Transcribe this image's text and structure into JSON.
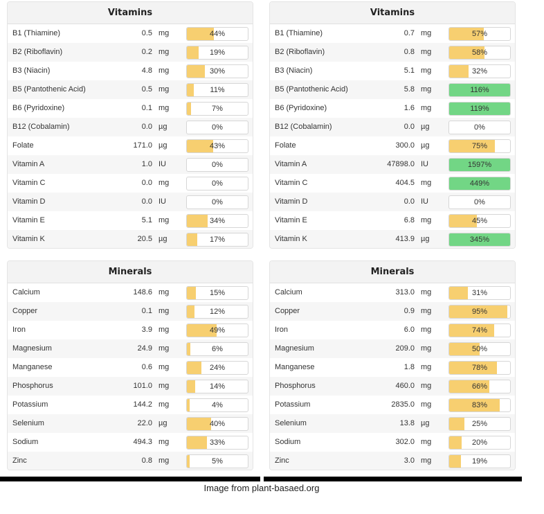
{
  "colors": {
    "yellow": "#f7cf70",
    "green": "#72d685"
  },
  "panels": [
    {
      "title": "Vitamins",
      "rows": [
        {
          "name": "B1 (Thiamine)",
          "amount": "0.5",
          "unit": "mg",
          "pct": "44%",
          "fill": 44,
          "color": "#f7cf70"
        },
        {
          "name": "B2 (Riboflavin)",
          "amount": "0.2",
          "unit": "mg",
          "pct": "19%",
          "fill": 19,
          "color": "#f7cf70"
        },
        {
          "name": "B3 (Niacin)",
          "amount": "4.8",
          "unit": "mg",
          "pct": "30%",
          "fill": 30,
          "color": "#f7cf70"
        },
        {
          "name": "B5 (Pantothenic Acid)",
          "amount": "0.5",
          "unit": "mg",
          "pct": "11%",
          "fill": 11,
          "color": "#f7cf70"
        },
        {
          "name": "B6 (Pyridoxine)",
          "amount": "0.1",
          "unit": "mg",
          "pct": "7%",
          "fill": 7,
          "color": "#f7cf70"
        },
        {
          "name": "B12 (Cobalamin)",
          "amount": "0.0",
          "unit": "µg",
          "pct": "0%",
          "fill": 0,
          "color": "#f7cf70"
        },
        {
          "name": "Folate",
          "amount": "171.0",
          "unit": "µg",
          "pct": "43%",
          "fill": 43,
          "color": "#f7cf70"
        },
        {
          "name": "Vitamin A",
          "amount": "1.0",
          "unit": "IU",
          "pct": "0%",
          "fill": 0,
          "color": "#f7cf70"
        },
        {
          "name": "Vitamin C",
          "amount": "0.0",
          "unit": "mg",
          "pct": "0%",
          "fill": 0,
          "color": "#f7cf70"
        },
        {
          "name": "Vitamin D",
          "amount": "0.0",
          "unit": "IU",
          "pct": "0%",
          "fill": 0,
          "color": "#f7cf70"
        },
        {
          "name": "Vitamin E",
          "amount": "5.1",
          "unit": "mg",
          "pct": "34%",
          "fill": 34,
          "color": "#f7cf70"
        },
        {
          "name": "Vitamin K",
          "amount": "20.5",
          "unit": "µg",
          "pct": "17%",
          "fill": 17,
          "color": "#f7cf70"
        }
      ]
    },
    {
      "title": "Vitamins",
      "rows": [
        {
          "name": "B1 (Thiamine)",
          "amount": "0.7",
          "unit": "mg",
          "pct": "57%",
          "fill": 57,
          "color": "#f7cf70"
        },
        {
          "name": "B2 (Riboflavin)",
          "amount": "0.8",
          "unit": "mg",
          "pct": "58%",
          "fill": 58,
          "color": "#f7cf70"
        },
        {
          "name": "B3 (Niacin)",
          "amount": "5.1",
          "unit": "mg",
          "pct": "32%",
          "fill": 32,
          "color": "#f7cf70"
        },
        {
          "name": "B5 (Pantothenic Acid)",
          "amount": "5.8",
          "unit": "mg",
          "pct": "116%",
          "fill": 100,
          "color": "#72d685"
        },
        {
          "name": "B6 (Pyridoxine)",
          "amount": "1.6",
          "unit": "mg",
          "pct": "119%",
          "fill": 100,
          "color": "#72d685"
        },
        {
          "name": "B12 (Cobalamin)",
          "amount": "0.0",
          "unit": "µg",
          "pct": "0%",
          "fill": 0,
          "color": "#f7cf70"
        },
        {
          "name": "Folate",
          "amount": "300.0",
          "unit": "µg",
          "pct": "75%",
          "fill": 75,
          "color": "#f7cf70"
        },
        {
          "name": "Vitamin A",
          "amount": "47898.0",
          "unit": "IU",
          "pct": "1597%",
          "fill": 100,
          "color": "#72d685"
        },
        {
          "name": "Vitamin C",
          "amount": "404.5",
          "unit": "mg",
          "pct": "449%",
          "fill": 100,
          "color": "#72d685"
        },
        {
          "name": "Vitamin D",
          "amount": "0.0",
          "unit": "IU",
          "pct": "0%",
          "fill": 0,
          "color": "#f7cf70"
        },
        {
          "name": "Vitamin E",
          "amount": "6.8",
          "unit": "mg",
          "pct": "45%",
          "fill": 45,
          "color": "#f7cf70"
        },
        {
          "name": "Vitamin K",
          "amount": "413.9",
          "unit": "µg",
          "pct": "345%",
          "fill": 100,
          "color": "#72d685"
        }
      ]
    },
    {
      "title": "Minerals",
      "rows": [
        {
          "name": "Calcium",
          "amount": "148.6",
          "unit": "mg",
          "pct": "15%",
          "fill": 15,
          "color": "#f7cf70"
        },
        {
          "name": "Copper",
          "amount": "0.1",
          "unit": "mg",
          "pct": "12%",
          "fill": 12,
          "color": "#f7cf70"
        },
        {
          "name": "Iron",
          "amount": "3.9",
          "unit": "mg",
          "pct": "49%",
          "fill": 49,
          "color": "#f7cf70"
        },
        {
          "name": "Magnesium",
          "amount": "24.9",
          "unit": "mg",
          "pct": "6%",
          "fill": 6,
          "color": "#f7cf70"
        },
        {
          "name": "Manganese",
          "amount": "0.6",
          "unit": "mg",
          "pct": "24%",
          "fill": 24,
          "color": "#f7cf70"
        },
        {
          "name": "Phosphorus",
          "amount": "101.0",
          "unit": "mg",
          "pct": "14%",
          "fill": 14,
          "color": "#f7cf70"
        },
        {
          "name": "Potassium",
          "amount": "144.2",
          "unit": "mg",
          "pct": "4%",
          "fill": 4,
          "color": "#f7cf70"
        },
        {
          "name": "Selenium",
          "amount": "22.0",
          "unit": "µg",
          "pct": "40%",
          "fill": 40,
          "color": "#f7cf70"
        },
        {
          "name": "Sodium",
          "amount": "494.3",
          "unit": "mg",
          "pct": "33%",
          "fill": 33,
          "color": "#f7cf70"
        },
        {
          "name": "Zinc",
          "amount": "0.8",
          "unit": "mg",
          "pct": "5%",
          "fill": 5,
          "color": "#f7cf70"
        }
      ]
    },
    {
      "title": "Minerals",
      "rows": [
        {
          "name": "Calcium",
          "amount": "313.0",
          "unit": "mg",
          "pct": "31%",
          "fill": 31,
          "color": "#f7cf70"
        },
        {
          "name": "Copper",
          "amount": "0.9",
          "unit": "mg",
          "pct": "95%",
          "fill": 95,
          "color": "#f7cf70"
        },
        {
          "name": "Iron",
          "amount": "6.0",
          "unit": "mg",
          "pct": "74%",
          "fill": 74,
          "color": "#f7cf70"
        },
        {
          "name": "Magnesium",
          "amount": "209.0",
          "unit": "mg",
          "pct": "50%",
          "fill": 50,
          "color": "#f7cf70"
        },
        {
          "name": "Manganese",
          "amount": "1.8",
          "unit": "mg",
          "pct": "78%",
          "fill": 78,
          "color": "#f7cf70"
        },
        {
          "name": "Phosphorus",
          "amount": "460.0",
          "unit": "mg",
          "pct": "66%",
          "fill": 66,
          "color": "#f7cf70"
        },
        {
          "name": "Potassium",
          "amount": "2835.0",
          "unit": "mg",
          "pct": "83%",
          "fill": 83,
          "color": "#f7cf70"
        },
        {
          "name": "Selenium",
          "amount": "13.8",
          "unit": "µg",
          "pct": "25%",
          "fill": 25,
          "color": "#f7cf70"
        },
        {
          "name": "Sodium",
          "amount": "302.0",
          "unit": "mg",
          "pct": "20%",
          "fill": 20,
          "color": "#f7cf70"
        },
        {
          "name": "Zinc",
          "amount": "3.0",
          "unit": "mg",
          "pct": "19%",
          "fill": 19,
          "color": "#f7cf70"
        }
      ]
    }
  ],
  "caption": "Image from plant-basaed.org"
}
